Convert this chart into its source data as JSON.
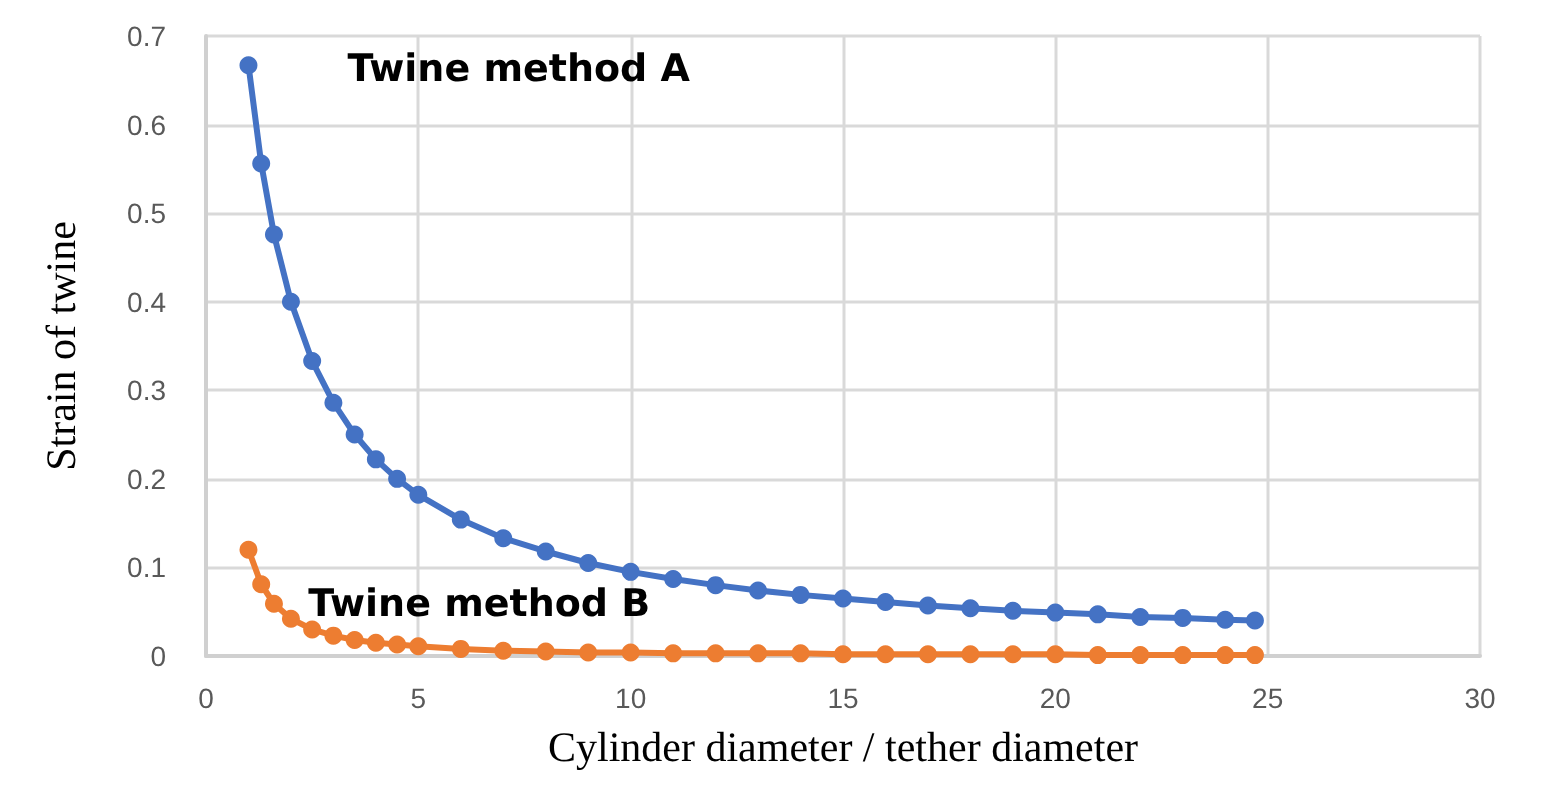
{
  "chart_data": {
    "type": "line",
    "xlabel": "Cylinder diameter / tether diameter",
    "ylabel": "Strain of twine",
    "xlim": [
      0,
      30
    ],
    "xticks": [
      0,
      5,
      10,
      15,
      20,
      25,
      30
    ],
    "ylim": [
      0,
      0.7
    ],
    "yticks": [
      0,
      0.1,
      0.2,
      0.3,
      0.4,
      0.5,
      0.6,
      0.7
    ],
    "grid": true,
    "legend": false,
    "marker": "circle",
    "line_style": "solid",
    "x": [
      1,
      1.3,
      1.6,
      2,
      2.5,
      3,
      3.5,
      4,
      4.5,
      5,
      6,
      7,
      8,
      9,
      10,
      11,
      12,
      13,
      14,
      15,
      16,
      17,
      18,
      19,
      20,
      21,
      22,
      23,
      24,
      24.7
    ],
    "series": [
      {
        "name": "Twine method A",
        "color": "#4472c4",
        "values": [
          0.667,
          0.556,
          0.476,
          0.4,
          0.333,
          0.286,
          0.25,
          0.222,
          0.2,
          0.182,
          0.154,
          0.133,
          0.118,
          0.105,
          0.095,
          0.087,
          0.08,
          0.074,
          0.069,
          0.065,
          0.061,
          0.057,
          0.054,
          0.051,
          0.049,
          0.047,
          0.044,
          0.043,
          0.041,
          0.04
        ]
      },
      {
        "name": "Twine method B",
        "color": "#ed7d31",
        "values": [
          0.12,
          0.081,
          0.059,
          0.042,
          0.03,
          0.023,
          0.018,
          0.015,
          0.013,
          0.011,
          0.008,
          0.006,
          0.005,
          0.004,
          0.004,
          0.003,
          0.003,
          0.003,
          0.003,
          0.002,
          0.002,
          0.002,
          0.002,
          0.002,
          0.002,
          0.001,
          0.001,
          0.001,
          0.001,
          0.001
        ]
      }
    ]
  }
}
